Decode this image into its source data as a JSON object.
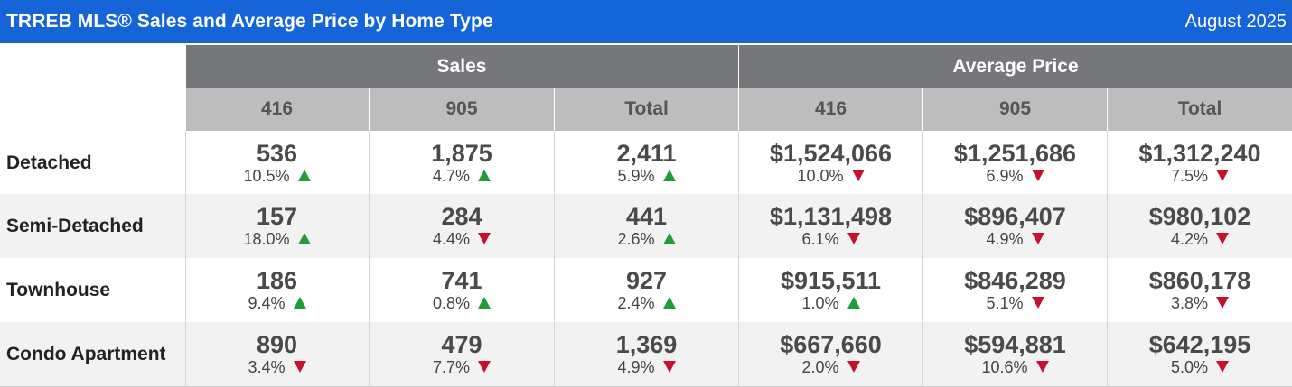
{
  "title": "TRREB MLS® Sales and Average Price by Home Type",
  "date": "August 2025",
  "colors": {
    "title_bg": "#1565d8",
    "up": "#1e9e3a",
    "down": "#c8102e"
  },
  "chart_data": {
    "type": "table",
    "groups": [
      "Sales",
      "Average Price"
    ],
    "columns": [
      "416",
      "905",
      "Total",
      "416",
      "905",
      "Total"
    ],
    "rows": [
      {
        "label": "Detached",
        "cells": [
          {
            "value": "536",
            "change": "10.5%",
            "dir": "up"
          },
          {
            "value": "1,875",
            "change": "4.7%",
            "dir": "up"
          },
          {
            "value": "2,411",
            "change": "5.9%",
            "dir": "up"
          },
          {
            "value": "$1,524,066",
            "change": "10.0%",
            "dir": "down"
          },
          {
            "value": "$1,251,686",
            "change": "6.9%",
            "dir": "down"
          },
          {
            "value": "$1,312,240",
            "change": "7.5%",
            "dir": "down"
          }
        ]
      },
      {
        "label": "Semi-Detached",
        "cells": [
          {
            "value": "157",
            "change": "18.0%",
            "dir": "up"
          },
          {
            "value": "284",
            "change": "4.4%",
            "dir": "down"
          },
          {
            "value": "441",
            "change": "2.6%",
            "dir": "up"
          },
          {
            "value": "$1,131,498",
            "change": "6.1%",
            "dir": "down"
          },
          {
            "value": "$896,407",
            "change": "4.9%",
            "dir": "down"
          },
          {
            "value": "$980,102",
            "change": "4.2%",
            "dir": "down"
          }
        ]
      },
      {
        "label": "Townhouse",
        "cells": [
          {
            "value": "186",
            "change": "9.4%",
            "dir": "up"
          },
          {
            "value": "741",
            "change": "0.8%",
            "dir": "up"
          },
          {
            "value": "927",
            "change": "2.4%",
            "dir": "up"
          },
          {
            "value": "$915,511",
            "change": "1.0%",
            "dir": "up"
          },
          {
            "value": "$846,289",
            "change": "5.1%",
            "dir": "down"
          },
          {
            "value": "$860,178",
            "change": "3.8%",
            "dir": "down"
          }
        ]
      },
      {
        "label": "Condo Apartment",
        "cells": [
          {
            "value": "890",
            "change": "3.4%",
            "dir": "down"
          },
          {
            "value": "479",
            "change": "7.7%",
            "dir": "down"
          },
          {
            "value": "1,369",
            "change": "4.9%",
            "dir": "down"
          },
          {
            "value": "$667,660",
            "change": "2.0%",
            "dir": "down"
          },
          {
            "value": "$594,881",
            "change": "10.6%",
            "dir": "down"
          },
          {
            "value": "$642,195",
            "change": "5.0%",
            "dir": "down"
          }
        ]
      }
    ]
  }
}
